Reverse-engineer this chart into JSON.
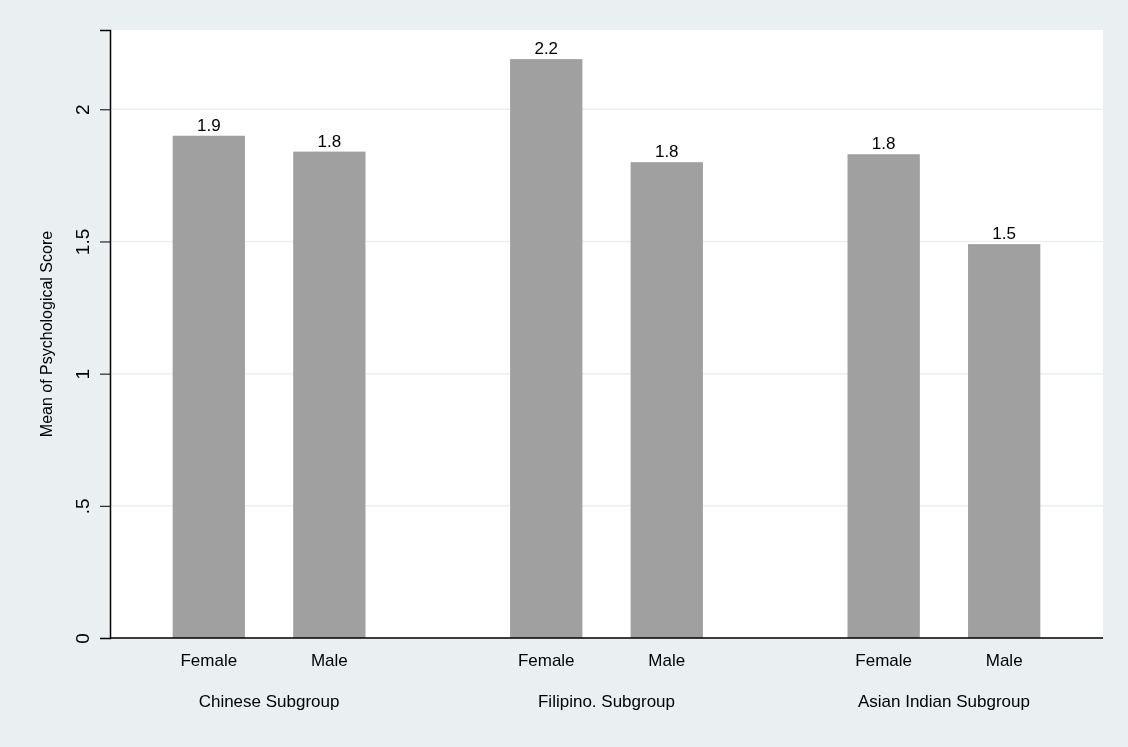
{
  "chart_data": {
    "type": "bar",
    "ylabel": "Mean of Psychological Score",
    "categories": [
      "Female",
      "Male",
      "Female",
      "Male",
      "Female",
      "Male"
    ],
    "values": [
      1.9,
      1.84,
      2.19,
      1.8,
      1.83,
      1.49
    ],
    "value_labels": [
      "1.9",
      "1.8",
      "2.2",
      "1.8",
      "1.8",
      "1.5"
    ],
    "color": "#a0a0a0",
    "ylim": [
      0,
      2.3
    ],
    "yticks": [
      0,
      {
        "value": 0.5,
        "label": ".5"
      },
      1,
      1.5,
      2
    ],
    "grid": "y",
    "annotations": [
      "Chinese Subgroup",
      "Filipino. Subgroup",
      "Asian Indian Subgroup"
    ]
  }
}
